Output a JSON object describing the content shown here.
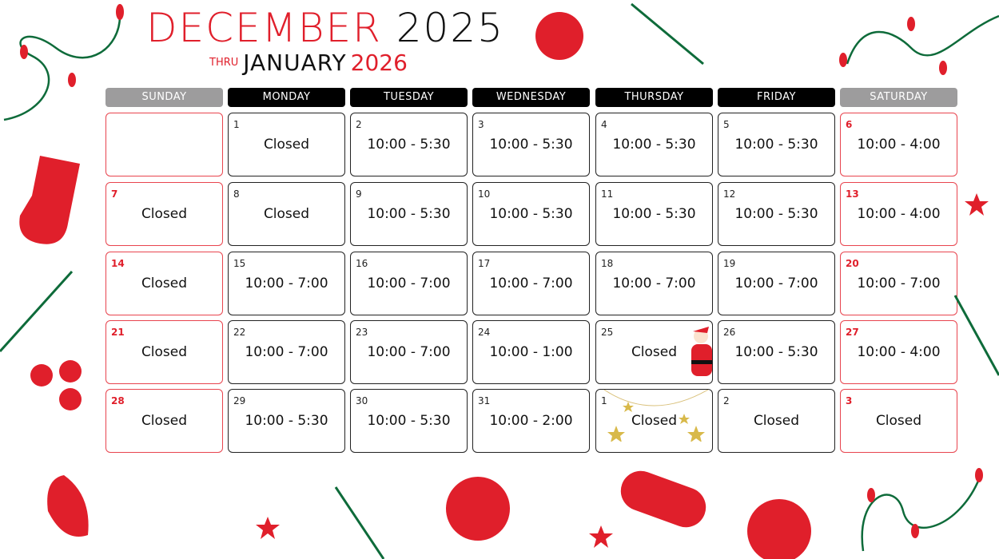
{
  "title": {
    "month": "DECEMBER",
    "year": "2025",
    "thru": "THRU",
    "month2": "JANUARY",
    "year2": "2026"
  },
  "colors": {
    "accent": "#e01f2b",
    "weekday_header": "#000000",
    "weekend_header": "#9d9c9d",
    "green": "#0e6b3a"
  },
  "days": [
    "SUNDAY",
    "MONDAY",
    "TUESDAY",
    "WEDNESDAY",
    "THURSDAY",
    "FRIDAY",
    "SATURDAY"
  ],
  "weeks": [
    [
      {
        "n": "",
        "t": ""
      },
      {
        "n": "1",
        "t": "Closed"
      },
      {
        "n": "2",
        "t": "10:00 - 5:30"
      },
      {
        "n": "3",
        "t": "10:00 - 5:30"
      },
      {
        "n": "4",
        "t": "10:00 - 5:30"
      },
      {
        "n": "5",
        "t": "10:00 - 5:30"
      },
      {
        "n": "6",
        "t": "10:00 - 4:00"
      }
    ],
    [
      {
        "n": "7",
        "t": "Closed"
      },
      {
        "n": "8",
        "t": "Closed"
      },
      {
        "n": "9",
        "t": "10:00 - 5:30"
      },
      {
        "n": "10",
        "t": "10:00 - 5:30"
      },
      {
        "n": "11",
        "t": "10:00 - 5:30"
      },
      {
        "n": "12",
        "t": "10:00 - 5:30"
      },
      {
        "n": "13",
        "t": "10:00 - 4:00"
      }
    ],
    [
      {
        "n": "14",
        "t": "Closed"
      },
      {
        "n": "15",
        "t": "10:00 - 7:00"
      },
      {
        "n": "16",
        "t": "10:00 - 7:00"
      },
      {
        "n": "17",
        "t": "10:00 - 7:00"
      },
      {
        "n": "18",
        "t": "10:00 - 7:00"
      },
      {
        "n": "19",
        "t": "10:00 - 7:00"
      },
      {
        "n": "20",
        "t": "10:00 - 7:00"
      }
    ],
    [
      {
        "n": "21",
        "t": "Closed"
      },
      {
        "n": "22",
        "t": "10:00 - 7:00"
      },
      {
        "n": "23",
        "t": "10:00 - 7:00"
      },
      {
        "n": "24",
        "t": "10:00 - 1:00"
      },
      {
        "n": "25",
        "t": "Closed",
        "icon": "santa-icon"
      },
      {
        "n": "26",
        "t": "10:00 - 5:30"
      },
      {
        "n": "27",
        "t": "10:00 - 4:00"
      }
    ],
    [
      {
        "n": "28",
        "t": "Closed"
      },
      {
        "n": "29",
        "t": "10:00 - 5:30"
      },
      {
        "n": "30",
        "t": "10:00 - 5:30"
      },
      {
        "n": "31",
        "t": "10:00 - 2:00"
      },
      {
        "n": "1",
        "t": "Closed",
        "icon": "gold-stars-icon"
      },
      {
        "n": "2",
        "t": "Closed"
      },
      {
        "n": "3",
        "t": "Closed"
      }
    ]
  ]
}
